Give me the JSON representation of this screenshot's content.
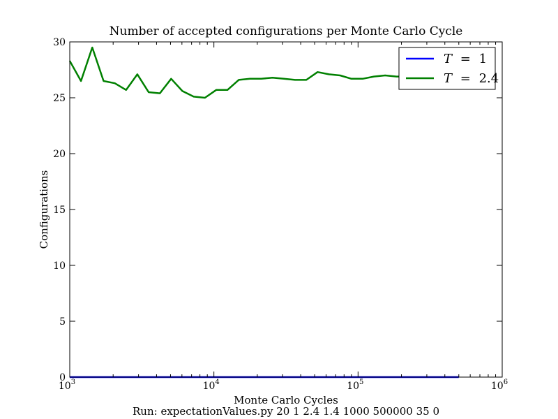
{
  "chart_data": {
    "type": "line",
    "title": "Number of accepted configurations per Monte Carlo Cycle",
    "xlabel": "Monte Carlo Cycles",
    "ylabel": "Configurations",
    "footer": "Run: expectationValues.py 20 1 2.4 1.4 1000 500000 35 0",
    "xscale": "log",
    "xlim": [
      1000,
      1000000
    ],
    "ylim": [
      0,
      30
    ],
    "yticks": [
      0,
      5,
      10,
      15,
      20,
      25,
      30
    ],
    "ytick_labels": [
      "0",
      "5",
      "10",
      "15",
      "20",
      "25",
      "30"
    ],
    "xticks": [
      1000,
      10000,
      100000,
      1000000
    ],
    "xtick_labels": [
      {
        "base": "10",
        "exp": "3"
      },
      {
        "base": "10",
        "exp": "4"
      },
      {
        "base": "10",
        "exp": "5"
      },
      {
        "base": "10",
        "exp": "6"
      }
    ],
    "grid": false,
    "legend_position": "top-right",
    "series": [
      {
        "name": "T = 1",
        "color": "#0000ff",
        "x": [
          1000,
          1197,
          1433,
          1716,
          2054,
          2459,
          2944,
          3524,
          4219,
          5051,
          6047,
          7239,
          8666,
          10375,
          12421,
          14870,
          17802,
          21311,
          25513,
          30543,
          36565,
          43774,
          52405,
          62737,
          75107,
          89916,
          107644,
          128868,
          154276,
          184694,
          221110,
          264705,
          316896,
          379378,
          454178,
          500000
        ],
        "y": [
          0,
          0,
          0,
          0,
          0,
          0,
          0,
          0,
          0,
          0,
          0,
          0,
          0,
          0,
          0,
          0,
          0,
          0,
          0,
          0,
          0,
          0,
          0,
          0,
          0,
          0,
          0,
          0,
          0,
          0,
          0,
          0,
          0,
          0,
          0,
          0
        ]
      },
      {
        "name": "T = 2.4",
        "color": "#008000",
        "x": [
          1000,
          1197,
          1433,
          1716,
          2054,
          2459,
          2944,
          3524,
          4219,
          5051,
          6047,
          7239,
          8666,
          10375,
          12421,
          14870,
          17802,
          21311,
          25513,
          30543,
          36565,
          43774,
          52405,
          62737,
          75107,
          89916,
          107644,
          128868,
          154276,
          184694,
          221110,
          264705,
          316896,
          379378,
          454178,
          500000
        ],
        "y": [
          28.3,
          26.5,
          29.5,
          26.5,
          26.3,
          25.7,
          27.1,
          25.5,
          25.4,
          26.7,
          25.6,
          25.1,
          25.0,
          25.7,
          25.7,
          26.6,
          26.7,
          26.7,
          26.8,
          26.7,
          26.6,
          26.6,
          27.3,
          27.1,
          27.0,
          26.7,
          26.7,
          26.9,
          27.0,
          26.9,
          26.9,
          26.9,
          26.9,
          26.9,
          26.9,
          26.9
        ]
      }
    ],
    "legend": [
      {
        "lhs": "T",
        "op": "=",
        "rhs": "1"
      },
      {
        "lhs": "T",
        "op": "=",
        "rhs": "2.4"
      }
    ]
  }
}
